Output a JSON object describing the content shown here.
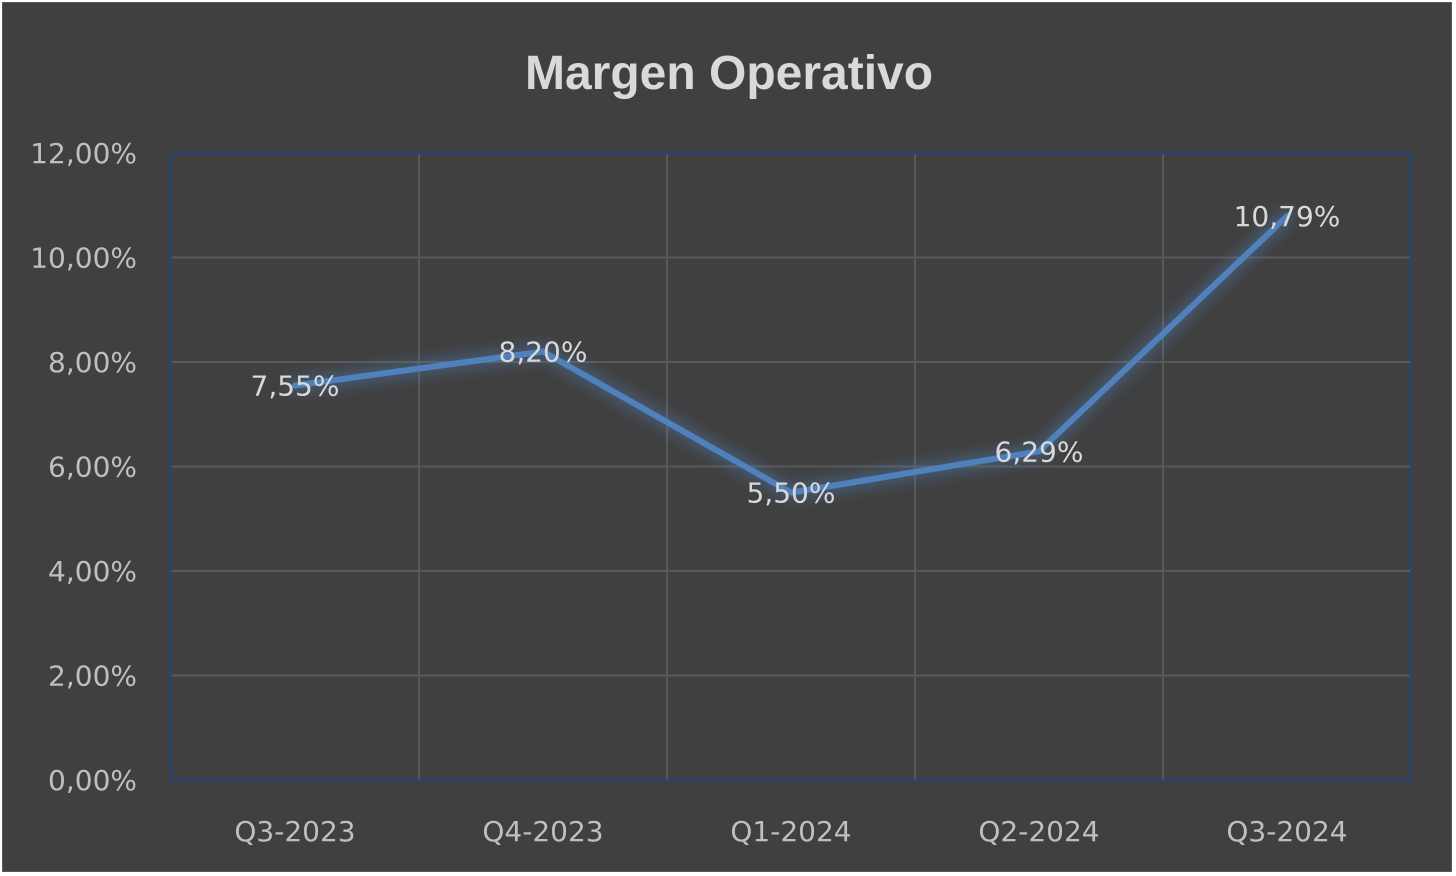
{
  "chart_data": {
    "type": "line",
    "title": "Margen Operativo",
    "categories": [
      "Q3-2023",
      "Q4-2023",
      "Q1-2024",
      "Q2-2024",
      "Q3-2024"
    ],
    "series": [
      {
        "values": [
          7.55,
          8.2,
          5.5,
          6.29,
          10.79
        ],
        "data_labels": [
          "7,55%",
          "8,20%",
          "5,50%",
          "6,29%",
          "10,79%"
        ],
        "color": "#4f81bd"
      }
    ],
    "ylim": [
      0,
      12
    ],
    "yticks": [
      0,
      2,
      4,
      6,
      8,
      10,
      12
    ],
    "ytick_labels": [
      "0,00%",
      "2,00%",
      "4,00%",
      "6,00%",
      "8,00%",
      "10,00%",
      "12,00%"
    ],
    "grid": true,
    "legend": "none",
    "colors": {
      "background": "#404040",
      "gridline": "#595959",
      "plot_border": "#1f497d",
      "text": "#bfbfbf"
    }
  }
}
